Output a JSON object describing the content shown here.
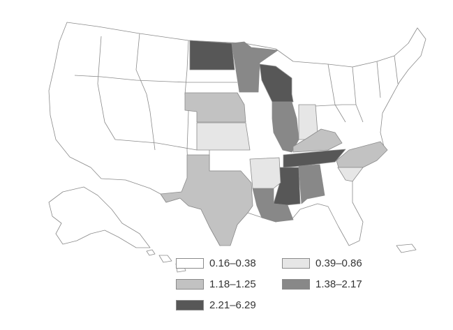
{
  "legend": {
    "items": [
      {
        "label": "0.16–0.38",
        "color": "#ffffff"
      },
      {
        "label": "0.39–0.86",
        "color": "#e6e6e6"
      },
      {
        "label": "1.18–1.25",
        "color": "#c2c2c2"
      },
      {
        "label": "1.38–2.17",
        "color": "#888888"
      },
      {
        "label": "2.21–6.29",
        "color": "#575757"
      }
    ]
  },
  "state_class": {
    "ND": 4,
    "MN": 3,
    "WI": 4,
    "IL": 3,
    "NE": 2,
    "KS": 1,
    "IN": 1,
    "KY": 2,
    "TN": 4,
    "MS": 4,
    "AL": 3,
    "LA": 3,
    "AR": 1,
    "TX": 2,
    "NC": 2,
    "SC": 1
  }
}
